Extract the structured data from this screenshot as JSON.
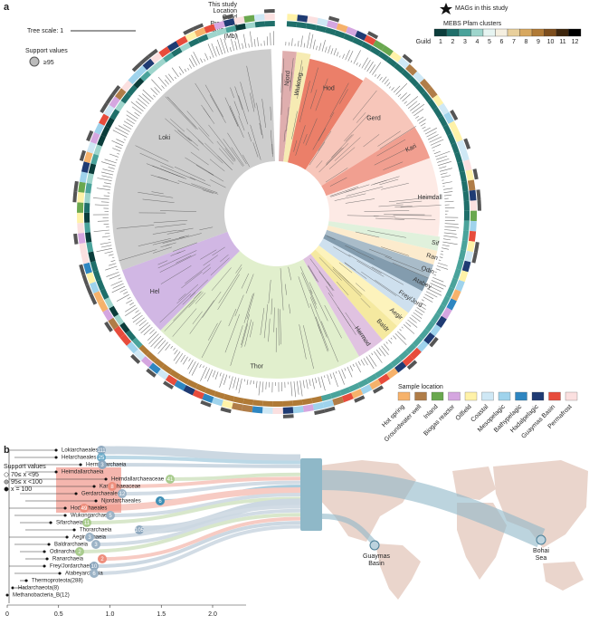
{
  "panel_a": {
    "label": "a",
    "tree_scale": "Tree scale: 1",
    "support_title": "Support values",
    "support_value": "≥95",
    "ring_labels": [
      "This study",
      "Location",
      "Guild",
      "Predicted",
      "genome size",
      "(Mb)"
    ],
    "mags_legend": "MAGs in this study",
    "mebs": {
      "title": "MEBS Pfam clusters",
      "guild_label": "Guild",
      "guilds": [
        1,
        2,
        3,
        4,
        5,
        6,
        7,
        8,
        9,
        10,
        11,
        12
      ]
    },
    "clades": [
      "Njord",
      "Wukong",
      "Hod",
      "Gerd",
      "Kari",
      "Heimdall",
      "Sif",
      "Ran",
      "Odin",
      "Atabey",
      "Frey/Jord",
      "Aegir",
      "Baldr",
      "Hermod",
      "Thor",
      "Hel",
      "Loki"
    ],
    "sample_location": {
      "title": "Sample location",
      "items": [
        "Hot spring",
        "Groundwater well",
        "Inland",
        "Biogas reactor",
        "Oilfield",
        "Coastal",
        "Mesopelagic",
        "Bathypelagic",
        "Hadalpelagic",
        "Guaymas Basin",
        "Permafrost"
      ]
    }
  },
  "panel_b": {
    "label": "b",
    "support_title": "Support values",
    "support_items": [
      "70≤ x <95",
      "95≤ x <100",
      "x = 100"
    ],
    "taxa": [
      {
        "name": "Lokiarchaeales",
        "count": 111
      },
      {
        "name": "Helarchaeales",
        "count": 25
      },
      {
        "name": "Hermodarchaeia",
        "count": 3
      },
      {
        "name": "Heimdallarchaeia"
      },
      {
        "name": "Heimdallarchaeaceae",
        "count": 41
      },
      {
        "name": "Kariarchaeaceae",
        "count": 8
      },
      {
        "name": "Gerdarchaeales",
        "count": 12
      },
      {
        "name": "Njordarchaeales",
        "count": 6
      },
      {
        "name": "Hodarchaeales",
        "count": 49
      },
      {
        "name": "Wukongarchaeia",
        "count": 5
      },
      {
        "name": "Sifarchaeia",
        "count": 11
      },
      {
        "name": "Thorarchaeia",
        "count": 105
      },
      {
        "name": "Aegirarchaeia",
        "count": 3
      },
      {
        "name": "Baldrarchaeia",
        "count": 3
      },
      {
        "name": "Odinarchaeia",
        "count": 2
      },
      {
        "name": "Ranarchaeia",
        "count": 2
      },
      {
        "name": "Frey/Jordarchaeia",
        "count": 10
      },
      {
        "name": "Atabeyarchaeia",
        "count": 6
      },
      {
        "name": "Thermoproteota(288)"
      },
      {
        "name": "Hadarchaeota(8)"
      },
      {
        "name": "Methanobacteria_B(12)"
      }
    ],
    "axis": {
      "ticks": [
        0,
        0.5,
        {
          "value": 1,
          "label": "1.0"
        },
        1.5,
        {
          "value": 2,
          "label": "2.0"
        }
      ]
    },
    "sites": [
      [
        "Guaymas",
        "Basin"
      ],
      [
        "Bohai",
        "Sea"
      ]
    ]
  }
}
